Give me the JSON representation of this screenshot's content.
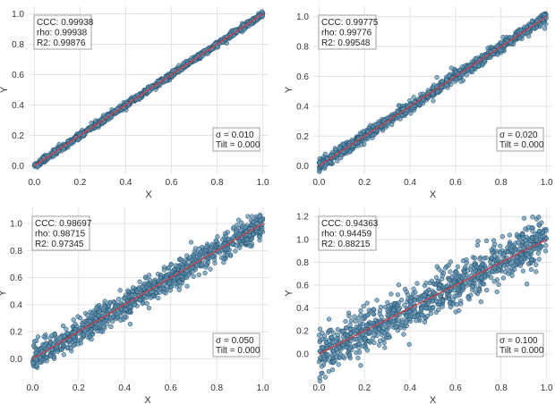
{
  "colors": {
    "point_fill": "#5b8fb0",
    "point_stroke": "#1f4a63",
    "fit_line": "#c8414b",
    "grid": "#e3e3e3",
    "box_border": "#888888"
  },
  "chart_data": [
    {
      "type": "scatter",
      "xlabel": "X",
      "ylabel": "Y",
      "xlim": [
        -0.025,
        1.025
      ],
      "ylim": [
        -0.05,
        1.05
      ],
      "xticks": [
        "0.0",
        "0.2",
        "0.4",
        "0.6",
        "0.8",
        "1.0"
      ],
      "yticks": [
        "0.0",
        "0.2",
        "0.4",
        "0.6",
        "0.8",
        "1.0"
      ],
      "metrics": [
        "CCC: 0.99938",
        "rho: 0.99938",
        "R2: 0.99876"
      ],
      "params": [
        "σ = 0.010",
        "Tilt = 0.000"
      ],
      "fit": [
        [
          0,
          0
        ],
        [
          1,
          1
        ]
      ],
      "noise_sigma": 0.01,
      "grid": true
    },
    {
      "type": "scatter",
      "xlabel": "X",
      "ylabel": "Y",
      "xlim": [
        -0.025,
        1.025
      ],
      "ylim": [
        -0.05,
        1.07
      ],
      "xticks": [
        "0.0",
        "0.2",
        "0.4",
        "0.6",
        "0.8",
        "1.0"
      ],
      "yticks": [
        "0.0",
        "0.2",
        "0.4",
        "0.6",
        "0.8",
        "1.0"
      ],
      "metrics": [
        "CCC: 0.99775",
        "rho: 0.99776",
        "R2: 0.99548"
      ],
      "params": [
        "σ = 0.020",
        "Tilt = 0.000"
      ],
      "fit": [
        [
          0,
          0
        ],
        [
          1,
          1
        ]
      ],
      "noise_sigma": 0.02,
      "grid": true
    },
    {
      "type": "scatter",
      "xlabel": "X",
      "ylabel": "Y",
      "xlim": [
        -0.025,
        1.025
      ],
      "ylim": [
        -0.15,
        1.12
      ],
      "xticks": [
        "0.0",
        "0.2",
        "0.4",
        "0.6",
        "0.8",
        "1.0"
      ],
      "yticks": [
        "0.0",
        "0.2",
        "0.4",
        "0.6",
        "0.8",
        "1.0"
      ],
      "metrics": [
        "CCC: 0.98697",
        "rho: 0.98715",
        "R2: 0.97345"
      ],
      "params": [
        "σ = 0.050",
        "Tilt = 0.000"
      ],
      "fit": [
        [
          0,
          0
        ],
        [
          1,
          1
        ]
      ],
      "noise_sigma": 0.05,
      "grid": true
    },
    {
      "type": "scatter",
      "xlabel": "X",
      "ylabel": "Y",
      "xlim": [
        -0.025,
        1.025
      ],
      "ylim": [
        -0.22,
        1.28
      ],
      "xticks": [
        "0.0",
        "0.2",
        "0.4",
        "0.6",
        "0.8",
        "1.0"
      ],
      "yticks": [
        "0.0",
        "0.2",
        "0.4",
        "0.6",
        "0.8",
        "1.0",
        "1.2"
      ],
      "metrics": [
        "CCC: 0.94363",
        "rho: 0.94459",
        "R2: 0.88215"
      ],
      "params": [
        "σ = 0.100",
        "Tilt = 0.000"
      ],
      "fit": [
        [
          0,
          0
        ],
        [
          1,
          1
        ]
      ],
      "noise_sigma": 0.1,
      "grid": true
    }
  ]
}
